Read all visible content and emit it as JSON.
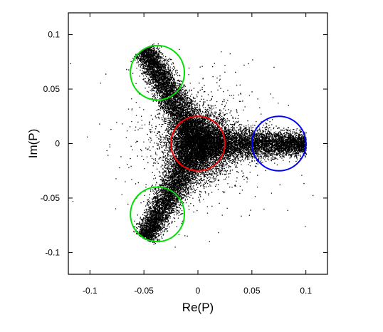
{
  "chart_data": {
    "type": "scatter",
    "title": "",
    "xlabel": "Re(P)",
    "ylabel": "Im(P)",
    "xlim": [
      -0.12,
      0.12
    ],
    "ylim": [
      -0.12,
      0.12
    ],
    "xticks": [
      -0.1,
      -0.05,
      0,
      0.05,
      0.1
    ],
    "yticks": [
      -0.1,
      -0.05,
      0,
      0.05,
      0.1
    ],
    "xtick_labels": [
      "-0.1",
      "-0.05",
      "0",
      "0.05",
      "0.1"
    ],
    "ytick_labels": [
      "-0.1",
      "-0.05",
      "0",
      "0.05",
      "0.1"
    ],
    "grid": false,
    "legend": "none",
    "point_color": "#000000",
    "cloud": {
      "description_free": true,
      "center_blob": {
        "x": 0.0,
        "y": 0.0,
        "spread": 0.02
      },
      "arms": [
        {
          "from": [
            0.0,
            0.0
          ],
          "to": [
            0.1,
            0.0
          ],
          "width": 0.006
        },
        {
          "from": [
            0.0,
            0.0
          ],
          "to": [
            -0.05,
            0.087
          ],
          "width": 0.006
        },
        {
          "from": [
            0.0,
            0.0
          ],
          "to": [
            -0.05,
            -0.087
          ],
          "width": 0.006
        }
      ]
    },
    "circles": [
      {
        "cx": 0.0,
        "cy": 0.0,
        "r": 0.025,
        "color": "#ff0000"
      },
      {
        "cx": 0.075,
        "cy": 0.0,
        "r": 0.025,
        "color": "#0000ff"
      },
      {
        "cx": -0.0375,
        "cy": 0.065,
        "r": 0.025,
        "color": "#00dd00"
      },
      {
        "cx": -0.0375,
        "cy": -0.065,
        "r": 0.025,
        "color": "#00dd00"
      }
    ]
  }
}
